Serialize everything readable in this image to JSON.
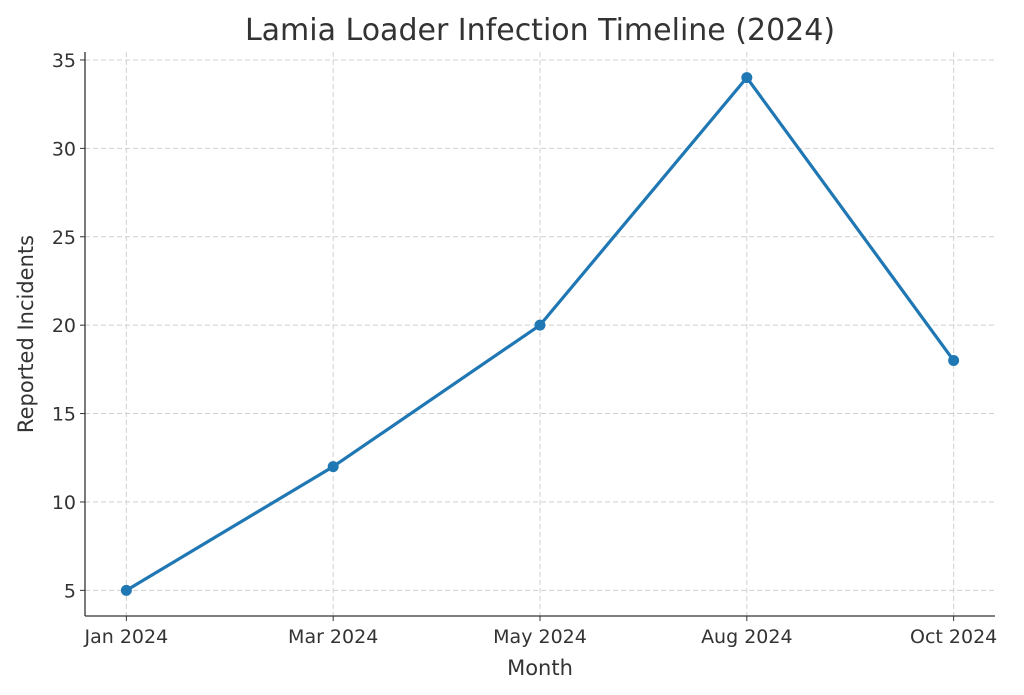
{
  "chart_data": {
    "type": "line",
    "title": "Lamia Loader Infection Timeline (2024)",
    "x_label": "Month",
    "y_label": "Reported Incidents",
    "categories": [
      "Jan 2024",
      "Mar 2024",
      "May 2024",
      "Aug 2024",
      "Oct 2024"
    ],
    "series": [
      {
        "name": "Reported Incidents",
        "color": "#1f77b4",
        "values": [
          5,
          12,
          20,
          34,
          18
        ]
      }
    ],
    "ylim": [
      3.55,
      35.45
    ],
    "yticks": [
      5,
      10,
      15,
      20,
      25,
      30,
      35
    ],
    "grid": true
  }
}
